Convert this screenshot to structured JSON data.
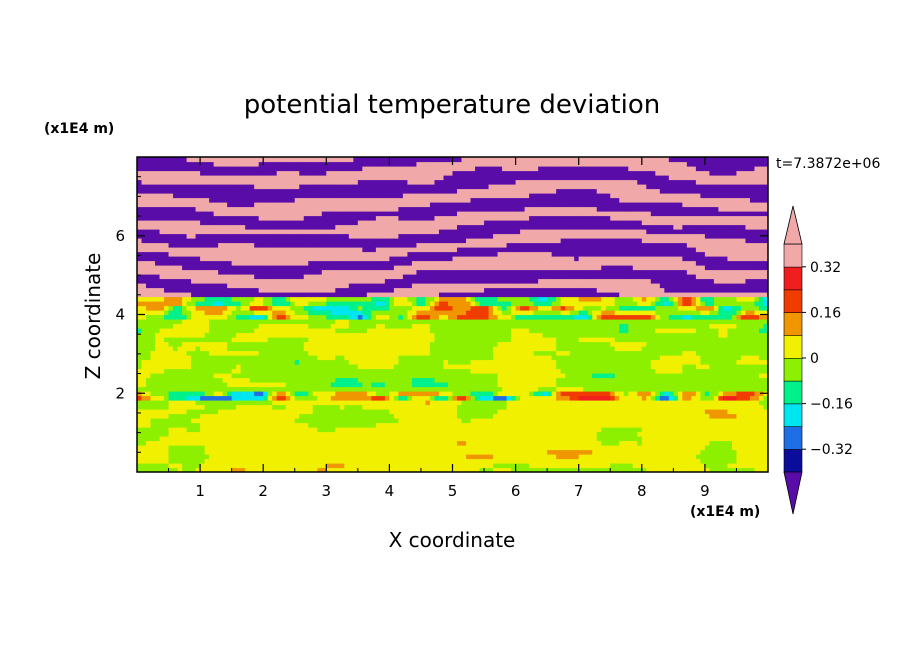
{
  "chart_data": {
    "type": "heatmap",
    "title": "potential temperature deviation",
    "xlabel": "X coordinate",
    "ylabel": "Z coordinate",
    "x_unit": "(x1E4 m)",
    "y_unit": "(x1E4 m)",
    "time_label": "t=7.3872e+06",
    "xlim": [
      0,
      10
    ],
    "ylim": [
      0,
      8
    ],
    "x_ticks": [
      1,
      2,
      3,
      4,
      5,
      6,
      7,
      8,
      9
    ],
    "y_ticks": [
      2,
      4,
      6
    ],
    "x_tick_labels": [
      "1",
      "2",
      "3",
      "4",
      "5",
      "6",
      "7",
      "8",
      "9"
    ],
    "y_tick_labels": [
      "2",
      "4",
      "6"
    ],
    "colorbar": {
      "levels": [
        -0.4,
        -0.32,
        -0.24,
        -0.16,
        -0.08,
        0,
        0.08,
        0.16,
        0.24,
        0.32,
        0.4
      ],
      "tick_values": [
        0.32,
        0.16,
        0,
        -0.16,
        -0.32
      ],
      "tick_labels": [
        "0.32",
        "0.16",
        "0",
        "−0.16",
        "−0.32"
      ],
      "colors": [
        "#5a0ca8",
        "#0c0c9c",
        "#1e6ee6",
        "#00e6f0",
        "#00f08c",
        "#8cf000",
        "#f0f000",
        "#f09600",
        "#f03c00",
        "#f01e1e",
        "#f0a8a8"
      ],
      "extend": "both"
    },
    "fields": {
      "lower_layer": {
        "z_range": [
          0,
          2.0
        ],
        "dominant": [
          0,
          0.08
        ]
      },
      "middle_layer": {
        "z_range": [
          2.0,
          4.4
        ],
        "dominant": [
          -0.08,
          0.08
        ]
      },
      "upper_layer": {
        "z_range": [
          4.4,
          8.0
        ],
        "alternating_bands": [
          -0.4,
          0.4
        ]
      }
    }
  }
}
